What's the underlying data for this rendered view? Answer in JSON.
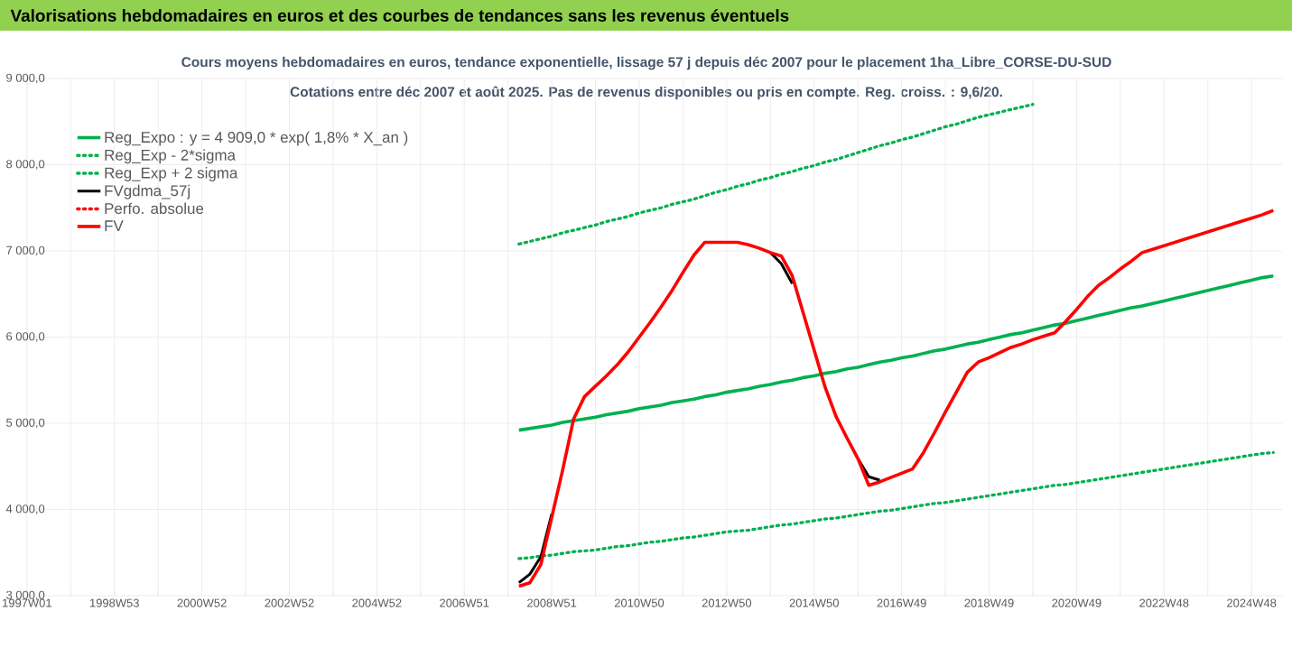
{
  "chart_data": {
    "type": "line",
    "title": "Valorisations hebdomadaires en euros et des courbes de tendances sans les revenus éventuels",
    "subtitle": "Cours moyens hebdomadaires en euros, tendance exponentielle, lissage 57 j depuis déc 2007 pour le placement 1ha_Libre_CORSE-DU-SUD",
    "annotations": [
      "Cotations entre déc 2007 et août 2025. Pas de revenus disponibles ou pris en compte. Reg. croiss. : 9,6/20."
    ],
    "categories": [
      "1997W01",
      null,
      null,
      null,
      null,
      null,
      null,
      null,
      "1998W53",
      null,
      null,
      null,
      null,
      null,
      null,
      null,
      "2000W52",
      null,
      null,
      null,
      null,
      null,
      null,
      null,
      "2002W52",
      null,
      null,
      null,
      null,
      null,
      null,
      null,
      "2004W52",
      null,
      null,
      null,
      null,
      null,
      null,
      null,
      "2006W51",
      null,
      null,
      null,
      null,
      null,
      null,
      null,
      "2008W51",
      null,
      null,
      null,
      null,
      null,
      null,
      null,
      "2010W50",
      null,
      null,
      null,
      null,
      null,
      null,
      null,
      "2012W50",
      null,
      null,
      null,
      null,
      null,
      null,
      null,
      "2014W50",
      null,
      null,
      null,
      null,
      null,
      null,
      null,
      "2016W49",
      null,
      null,
      null,
      null,
      null,
      null,
      null,
      "2018W49",
      null,
      null,
      null,
      null,
      null,
      null,
      null,
      "2020W49",
      null,
      null,
      null,
      null,
      null,
      null,
      null,
      "2022W48",
      null,
      null,
      null,
      null,
      null,
      null,
      null,
      "2024W48",
      null,
      null
    ],
    "ylim": [
      3000,
      9000
    ],
    "yticks": [
      {
        "value": 3000,
        "label": "3 000,0"
      },
      {
        "value": 4000,
        "label": "4 000,0"
      },
      {
        "value": 5000,
        "label": "5 000,0"
      },
      {
        "value": 6000,
        "label": "6 000,0"
      },
      {
        "value": 7000,
        "label": "7 000,0"
      },
      {
        "value": 8000,
        "label": "8 000,0"
      },
      {
        "value": 9000,
        "label": "9 000,0"
      }
    ],
    "grid": true,
    "legend": "top left",
    "series": [
      {
        "name": "Reg_Expo : y = 4 909,0 * exp( 1,8% *  X_an )",
        "color": "#00b050",
        "line_style": "solid",
        "values": [
          null,
          null,
          null,
          null,
          null,
          null,
          null,
          null,
          null,
          null,
          null,
          null,
          null,
          null,
          null,
          null,
          null,
          null,
          null,
          null,
          null,
          null,
          null,
          null,
          null,
          null,
          null,
          null,
          null,
          null,
          null,
          null,
          null,
          null,
          null,
          null,
          null,
          null,
          null,
          null,
          null,
          null,
          null,
          null,
          null,
          4920,
          4940,
          4960,
          4980,
          5010,
          5030,
          5050,
          5070,
          5100,
          5120,
          5140,
          5170,
          5190,
          5210,
          5240,
          5260,
          5280,
          5310,
          5330,
          5360,
          5380,
          5400,
          5430,
          5450,
          5480,
          5500,
          5530,
          5550,
          5580,
          5600,
          5630,
          5650,
          5680,
          5710,
          5730,
          5760,
          5780,
          5810,
          5840,
          5860,
          5890,
          5920,
          5940,
          5970,
          6000,
          6030,
          6050,
          6080,
          6110,
          6140,
          6160,
          6190,
          6220,
          6250,
          6280,
          6310,
          6340,
          6360,
          6390,
          6420,
          6450,
          6480,
          6510,
          6540,
          6570,
          6600,
          6630,
          6660,
          6690,
          6710
        ]
      },
      {
        "name": "Reg_Exp - 2*sigma",
        "color": "#00b050",
        "line_style": "dotted",
        "values": [
          null,
          null,
          null,
          null,
          null,
          null,
          null,
          null,
          null,
          null,
          null,
          null,
          null,
          null,
          null,
          null,
          null,
          null,
          null,
          null,
          null,
          null,
          null,
          null,
          null,
          null,
          null,
          null,
          null,
          null,
          null,
          null,
          null,
          null,
          null,
          null,
          null,
          null,
          null,
          null,
          null,
          null,
          null,
          null,
          null,
          3430,
          3440,
          3460,
          3470,
          3490,
          3510,
          3520,
          3530,
          3550,
          3570,
          3580,
          3600,
          3620,
          3630,
          3650,
          3670,
          3680,
          3700,
          3720,
          3740,
          3750,
          3760,
          3780,
          3800,
          3820,
          3830,
          3850,
          3870,
          3890,
          3900,
          3920,
          3940,
          3960,
          3980,
          3990,
          4010,
          4030,
          4050,
          4070,
          4080,
          4100,
          4120,
          4140,
          4160,
          4180,
          4200,
          4220,
          4240,
          4260,
          4280,
          4290,
          4310,
          4330,
          4350,
          4370,
          4390,
          4410,
          4430,
          4450,
          4470,
          4490,
          4510,
          4530,
          4550,
          4570,
          4590,
          4610,
          4630,
          4650,
          4660
        ]
      },
      {
        "name": "Reg_Exp + 2 sigma",
        "color": "#00b050",
        "line_style": "dotted",
        "values": [
          null,
          null,
          null,
          null,
          null,
          null,
          null,
          null,
          null,
          null,
          null,
          null,
          null,
          null,
          null,
          null,
          null,
          null,
          null,
          null,
          null,
          null,
          null,
          null,
          null,
          null,
          null,
          null,
          null,
          null,
          null,
          null,
          null,
          null,
          null,
          null,
          null,
          null,
          null,
          null,
          null,
          null,
          null,
          null,
          null,
          7080,
          7110,
          7140,
          7170,
          7210,
          7240,
          7270,
          7300,
          7340,
          7370,
          7400,
          7440,
          7470,
          7500,
          7540,
          7570,
          7600,
          7640,
          7680,
          7710,
          7750,
          7780,
          7820,
          7850,
          7890,
          7920,
          7960,
          7990,
          8030,
          8060,
          8100,
          8140,
          8180,
          8220,
          8250,
          8290,
          8320,
          8360,
          8400,
          8440,
          8470,
          8510,
          8550,
          8580,
          8610,
          8640,
          8670,
          8700,
          null,
          null,
          null,
          null,
          null,
          null,
          null,
          null,
          null,
          null,
          null,
          null,
          null,
          null,
          null,
          null,
          null,
          null,
          null,
          null,
          null,
          null
        ]
      },
      {
        "name": "FVgdma_57j",
        "color": "#000000",
        "line_style": "solid",
        "values": [
          null,
          null,
          null,
          null,
          null,
          null,
          null,
          null,
          null,
          null,
          null,
          null,
          null,
          null,
          null,
          null,
          null,
          null,
          null,
          null,
          null,
          null,
          null,
          null,
          null,
          null,
          null,
          null,
          null,
          null,
          null,
          null,
          null,
          null,
          null,
          null,
          null,
          null,
          null,
          null,
          null,
          null,
          null,
          null,
          null,
          3150,
          3250,
          3450,
          3950,
          null,
          null,
          null,
          null,
          null,
          null,
          null,
          null,
          null,
          null,
          null,
          null,
          null,
          null,
          null,
          null,
          null,
          null,
          null,
          6980,
          6850,
          6620,
          null,
          null,
          null,
          null,
          null,
          4590,
          4380,
          4340,
          null,
          null,
          null,
          null,
          null,
          null,
          null,
          null,
          null,
          null,
          null,
          null,
          null,
          null,
          null,
          null,
          null,
          null,
          null,
          null,
          null,
          null,
          null,
          null,
          null,
          null,
          null,
          null,
          null,
          null,
          null,
          null,
          null,
          null,
          null,
          null
        ]
      },
      {
        "name": "Perfo. absolue",
        "color": "#ff0000",
        "line_style": "dotted",
        "values": [
          null,
          null,
          null,
          null,
          null,
          null,
          null,
          null,
          null,
          null,
          null,
          null,
          null,
          null,
          null,
          null,
          null,
          null,
          null,
          null,
          null,
          null,
          null,
          null,
          null,
          null,
          null,
          null,
          null,
          null,
          null,
          null,
          null,
          null,
          null,
          null,
          null,
          null,
          null,
          null,
          null,
          null,
          null,
          null,
          null,
          null,
          null,
          null,
          null,
          null,
          null,
          null,
          null,
          null,
          null,
          null,
          null,
          null,
          null,
          null,
          null,
          null,
          null,
          null,
          null,
          null,
          null,
          null,
          null,
          null,
          null,
          null,
          null,
          null,
          null,
          null,
          null,
          null,
          null,
          null,
          null,
          null,
          null,
          null,
          null,
          null,
          null,
          null,
          null,
          null,
          null,
          null,
          null,
          null,
          null,
          null,
          null,
          null,
          null,
          null,
          null,
          null,
          null,
          null,
          null,
          null,
          null,
          null,
          null,
          null,
          null,
          null,
          null,
          null,
          null
        ]
      },
      {
        "name": "FV",
        "color": "#ff0000",
        "line_style": "solid",
        "values": [
          null,
          null,
          null,
          null,
          null,
          null,
          null,
          null,
          null,
          null,
          null,
          null,
          null,
          null,
          null,
          null,
          null,
          null,
          null,
          null,
          null,
          null,
          null,
          null,
          null,
          null,
          null,
          null,
          null,
          null,
          null,
          null,
          null,
          null,
          null,
          null,
          null,
          null,
          null,
          null,
          null,
          null,
          null,
          null,
          null,
          3110,
          3150,
          3360,
          3910,
          4460,
          5050,
          5310,
          5430,
          5550,
          5680,
          5830,
          6000,
          6170,
          6350,
          6540,
          6750,
          6950,
          7100,
          7100,
          7100,
          7100,
          7070,
          7030,
          6980,
          6940,
          6710,
          6280,
          5850,
          5420,
          5080,
          4830,
          4590,
          4280,
          4320,
          4370,
          4420,
          4470,
          4660,
          4890,
          5130,
          5360,
          5590,
          5710,
          5760,
          5820,
          5880,
          5920,
          5970,
          6010,
          6050,
          6180,
          6320,
          6470,
          6600,
          6690,
          6790,
          6880,
          6980,
          7020,
          7060,
          7100,
          7140,
          7180,
          7220,
          7260,
          7300,
          7340,
          7380,
          7420,
          7470
        ]
      }
    ]
  }
}
